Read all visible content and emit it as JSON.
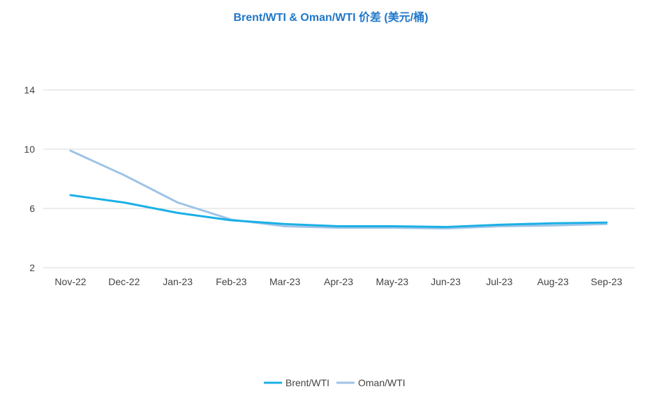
{
  "chart_data": {
    "type": "line",
    "title": "Brent/WTI & Oman/WTI 价差 (美元/桶)",
    "categories": [
      "Nov-22",
      "Dec-22",
      "Jan-23",
      "Feb-23",
      "Mar-23",
      "Apr-23",
      "May-23",
      "Jun-23",
      "Jul-23",
      "Aug-23",
      "Sep-23"
    ],
    "y_ticks": [
      "2",
      "6",
      "10",
      "14"
    ],
    "ylim": [
      2,
      14
    ],
    "grid": true,
    "legend_position": "bottom",
    "series": [
      {
        "name": "Brent/WTI",
        "color": "#1ab0e6",
        "values": [
          6.9,
          6.4,
          5.7,
          5.2,
          4.95,
          4.8,
          4.8,
          4.75,
          4.9,
          5.0,
          5.05
        ]
      },
      {
        "name": "Oman/WTI",
        "color": "#9ec3e6",
        "values": [
          9.9,
          8.25,
          6.4,
          5.25,
          4.8,
          4.7,
          4.7,
          4.65,
          4.8,
          4.85,
          4.95
        ]
      }
    ]
  }
}
